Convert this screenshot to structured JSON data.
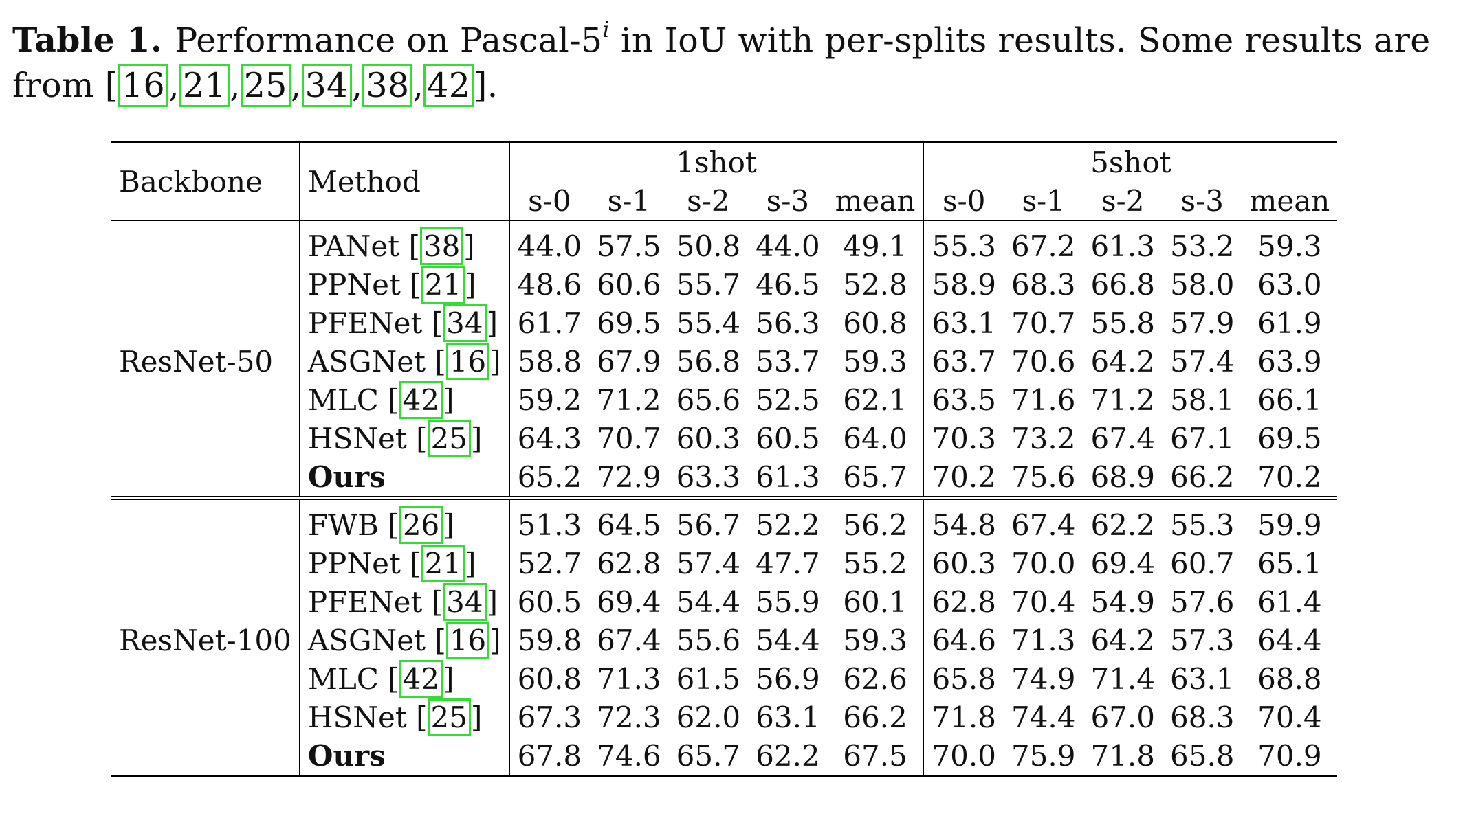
{
  "caption": {
    "label": "Table 1.",
    "text_before_sup": "Performance on Pascal-5",
    "sup": "i",
    "text_after_sup": " in IoU with per-splits results. Some results are from ",
    "citations": [
      "16",
      "21",
      "25",
      "34",
      "38",
      "42"
    ],
    "end": "."
  },
  "table": {
    "header": {
      "backbone": "Backbone",
      "method": "Method",
      "shot1": "1shot",
      "shot5": "5shot",
      "splits": [
        "s-0",
        "s-1",
        "s-2",
        "s-3",
        "mean"
      ]
    },
    "groups": [
      {
        "backbone": "ResNet-50",
        "rows": [
          {
            "method": "PANet",
            "ref": "38",
            "v": [
              "44.0",
              "57.5",
              "50.8",
              "44.0",
              "49.1",
              "55.3",
              "67.2",
              "61.3",
              "53.2",
              "59.3"
            ],
            "bold": []
          },
          {
            "method": "PPNet",
            "ref": "21",
            "v": [
              "48.6",
              "60.6",
              "55.7",
              "46.5",
              "52.8",
              "58.9",
              "68.3",
              "66.8",
              "58.0",
              "63.0"
            ],
            "bold": []
          },
          {
            "method": "PFENet",
            "ref": "34",
            "v": [
              "61.7",
              "69.5",
              "55.4",
              "56.3",
              "60.8",
              "63.1",
              "70.7",
              "55.8",
              "57.9",
              "61.9"
            ],
            "bold": []
          },
          {
            "method": "ASGNet",
            "ref": "16",
            "v": [
              "58.8",
              "67.9",
              "56.8",
              "53.7",
              "59.3",
              "63.7",
              "70.6",
              "64.2",
              "57.4",
              "63.9"
            ],
            "bold": []
          },
          {
            "method": "MLC",
            "ref": "42",
            "v": [
              "59.2",
              "71.2",
              "65.6",
              "52.5",
              "62.1",
              "63.5",
              "71.6",
              "71.2",
              "58.1",
              "66.1"
            ],
            "bold": [
              2,
              7
            ]
          },
          {
            "method": "HSNet",
            "ref": "25",
            "v": [
              "64.3",
              "70.7",
              "60.3",
              "60.5",
              "64.0",
              "70.3",
              "73.2",
              "67.4",
              "67.1",
              "69.5"
            ],
            "bold": [
              5,
              8
            ]
          },
          {
            "method": "Ours",
            "ref": "",
            "v": [
              "65.2",
              "72.9",
              "63.3",
              "61.3",
              "65.7",
              "70.2",
              "75.6",
              "68.9",
              "66.2",
              "70.2"
            ],
            "bold": [
              0,
              1,
              3,
              4,
              6,
              9
            ],
            "method_bold": true
          }
        ]
      },
      {
        "backbone": "ResNet-100",
        "rows": [
          {
            "method": "FWB",
            "ref": "26",
            "v": [
              "51.3",
              "64.5",
              "56.7",
              "52.2",
              "56.2",
              "54.8",
              "67.4",
              "62.2",
              "55.3",
              "59.9"
            ],
            "bold": []
          },
          {
            "method": "PPNet",
            "ref": "21",
            "v": [
              "52.7",
              "62.8",
              "57.4",
              "47.7",
              "55.2",
              "60.3",
              "70.0",
              "69.4",
              "60.7",
              "65.1"
            ],
            "bold": []
          },
          {
            "method": "PFENet",
            "ref": "34",
            "v": [
              "60.5",
              "69.4",
              "54.4",
              "55.9",
              "60.1",
              "62.8",
              "70.4",
              "54.9",
              "57.6",
              "61.4"
            ],
            "bold": []
          },
          {
            "method": "ASGNet",
            "ref": "16",
            "v": [
              "59.8",
              "67.4",
              "55.6",
              "54.4",
              "59.3",
              "64.6",
              "71.3",
              "64.2",
              "57.3",
              "64.4"
            ],
            "bold": []
          },
          {
            "method": "MLC",
            "ref": "42",
            "v": [
              "60.8",
              "71.3",
              "61.5",
              "56.9",
              "62.6",
              "65.8",
              "74.9",
              "71.4",
              "63.1",
              "68.8"
            ],
            "bold": []
          },
          {
            "method": "HSNet",
            "ref": "25",
            "v": [
              "67.3",
              "72.3",
              "62.0",
              "63.1",
              "66.2",
              "71.8",
              "74.4",
              "67.0",
              "68.3",
              "70.4"
            ],
            "bold": [
              3,
              5,
              8
            ]
          },
          {
            "method": "Ours",
            "ref": "",
            "v": [
              "67.8",
              "74.6",
              "65.7",
              "62.2",
              "67.5",
              "70.0",
              "75.9",
              "71.8",
              "65.8",
              "70.9"
            ],
            "bold": [
              0,
              1,
              2,
              4,
              6,
              7,
              9
            ],
            "method_bold": true
          }
        ]
      }
    ]
  }
}
